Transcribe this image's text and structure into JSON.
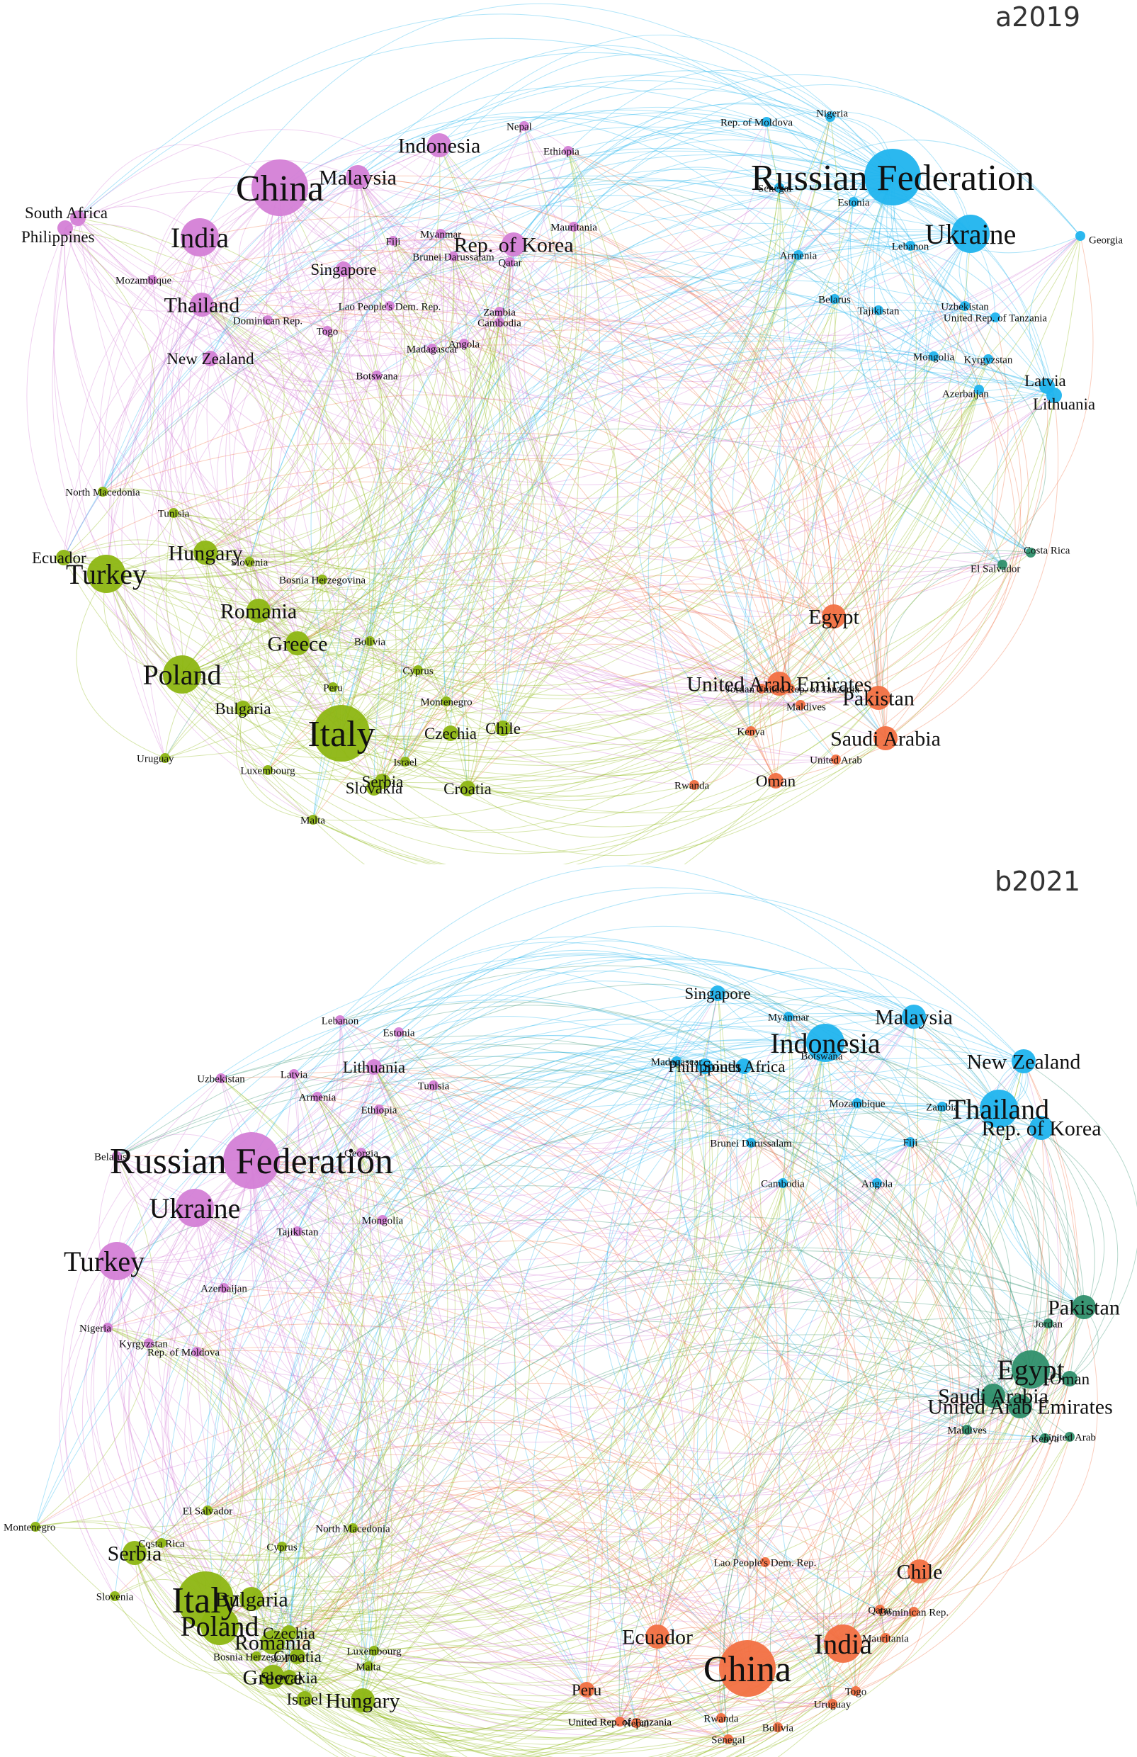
{
  "colors": {
    "purple": "#d47fd6",
    "cyan": "#20b4ee",
    "olive": "#8db612",
    "orange": "#f27042",
    "teal": "#2f8f6c",
    "edge_alpha": 0.35
  },
  "panels": [
    {
      "id": "a",
      "label": "a2019",
      "edge_count": 640,
      "nodes": [
        {
          "name": "China",
          "group": "purple",
          "size": "xl"
        },
        {
          "name": "India",
          "group": "purple",
          "size": "l"
        },
        {
          "name": "Indonesia",
          "group": "purple",
          "size": "m"
        },
        {
          "name": "Malaysia",
          "group": "purple",
          "size": "m"
        },
        {
          "name": "Thailand",
          "group": "purple",
          "size": "m"
        },
        {
          "name": "Rep. of Korea",
          "group": "purple",
          "size": "m"
        },
        {
          "name": "New Zealand",
          "group": "purple",
          "size": "s"
        },
        {
          "name": "Singapore",
          "group": "purple",
          "size": "s"
        },
        {
          "name": "South Africa",
          "group": "purple",
          "size": "s"
        },
        {
          "name": "Philippines",
          "group": "purple",
          "size": "s"
        },
        {
          "name": "Nepal",
          "group": "purple",
          "size": "xs"
        },
        {
          "name": "Ethiopia",
          "group": "purple",
          "size": "xs"
        },
        {
          "name": "Mauritania",
          "group": "purple",
          "size": "xs"
        },
        {
          "name": "Myanmar",
          "group": "purple",
          "size": "xs"
        },
        {
          "name": "Fiji",
          "group": "purple",
          "size": "xs"
        },
        {
          "name": "Brunei Darussalam",
          "group": "purple",
          "size": "xs"
        },
        {
          "name": "Qatar",
          "group": "purple",
          "size": "xs"
        },
        {
          "name": "Mozambique",
          "group": "purple",
          "size": "xs"
        },
        {
          "name": "Lao People's Dem. Rep.",
          "group": "purple",
          "size": "xs"
        },
        {
          "name": "Zambia",
          "group": "purple",
          "size": "xs"
        },
        {
          "name": "Cambodia",
          "group": "purple",
          "size": "xs"
        },
        {
          "name": "Dominican Rep.",
          "group": "purple",
          "size": "xs"
        },
        {
          "name": "Togo",
          "group": "purple",
          "size": "xs"
        },
        {
          "name": "Angola",
          "group": "purple",
          "size": "xs"
        },
        {
          "name": "Madagascar",
          "group": "purple",
          "size": "xs"
        },
        {
          "name": "Botswana",
          "group": "purple",
          "size": "xs"
        },
        {
          "name": "Russian Federation",
          "group": "cyan",
          "size": "xl"
        },
        {
          "name": "Ukraine",
          "group": "cyan",
          "size": "l"
        },
        {
          "name": "Rep. of Moldova",
          "group": "cyan",
          "size": "xs"
        },
        {
          "name": "Nigeria",
          "group": "cyan",
          "size": "xs"
        },
        {
          "name": "Senegal",
          "group": "cyan",
          "size": "xs"
        },
        {
          "name": "Estonia",
          "group": "cyan",
          "size": "xs"
        },
        {
          "name": "Georgia",
          "group": "cyan",
          "size": "xs"
        },
        {
          "name": "Armenia",
          "group": "cyan",
          "size": "xs"
        },
        {
          "name": "Lebanon",
          "group": "cyan",
          "size": "xs"
        },
        {
          "name": "Belarus",
          "group": "cyan",
          "size": "xs"
        },
        {
          "name": "Tajikistan",
          "group": "cyan",
          "size": "xs"
        },
        {
          "name": "Uzbekistan",
          "group": "cyan",
          "size": "xs"
        },
        {
          "name": "United Rep. of Tanzania",
          "group": "cyan",
          "size": "xs"
        },
        {
          "name": "Mongolia",
          "group": "cyan",
          "size": "xs"
        },
        {
          "name": "Kyrgyzstan",
          "group": "cyan",
          "size": "xs"
        },
        {
          "name": "Azerbaijan",
          "group": "cyan",
          "size": "xs"
        },
        {
          "name": "Latvia",
          "group": "cyan",
          "size": "s"
        },
        {
          "name": "Lithuania",
          "group": "cyan",
          "size": "s"
        },
        {
          "name": "Italy",
          "group": "olive",
          "size": "xl"
        },
        {
          "name": "Turkey",
          "group": "olive",
          "size": "l"
        },
        {
          "name": "Poland",
          "group": "olive",
          "size": "l"
        },
        {
          "name": "Romania",
          "group": "olive",
          "size": "m"
        },
        {
          "name": "Hungary",
          "group": "olive",
          "size": "m"
        },
        {
          "name": "Greece",
          "group": "olive",
          "size": "m"
        },
        {
          "name": "Bulgaria",
          "group": "olive",
          "size": "s"
        },
        {
          "name": "Serbia",
          "group": "olive",
          "size": "s"
        },
        {
          "name": "Slovakia",
          "group": "olive",
          "size": "s"
        },
        {
          "name": "Croatia",
          "group": "olive",
          "size": "s"
        },
        {
          "name": "Czechia",
          "group": "olive",
          "size": "s"
        },
        {
          "name": "Chile",
          "group": "olive",
          "size": "s"
        },
        {
          "name": "Ecuador",
          "group": "olive",
          "size": "s"
        },
        {
          "name": "Slovenia",
          "group": "olive",
          "size": "xs"
        },
        {
          "name": "North Macedonia",
          "group": "olive",
          "size": "xs"
        },
        {
          "name": "Tunisia",
          "group": "olive",
          "size": "xs"
        },
        {
          "name": "Bosnia Herzegovina",
          "group": "olive",
          "size": "xs"
        },
        {
          "name": "Bolivia",
          "group": "olive",
          "size": "xs"
        },
        {
          "name": "Peru",
          "group": "olive",
          "size": "xs"
        },
        {
          "name": "Cyprus",
          "group": "olive",
          "size": "xs"
        },
        {
          "name": "Montenegro",
          "group": "olive",
          "size": "xs"
        },
        {
          "name": "Israel",
          "group": "olive",
          "size": "xs"
        },
        {
          "name": "Uruguay",
          "group": "olive",
          "size": "xs"
        },
        {
          "name": "Luxembourg",
          "group": "olive",
          "size": "xs"
        },
        {
          "name": "Malta",
          "group": "olive",
          "size": "xs"
        },
        {
          "name": "Egypt",
          "group": "orange",
          "size": "m"
        },
        {
          "name": "United Arab Emirates",
          "group": "orange",
          "size": "m"
        },
        {
          "name": "Pakistan",
          "group": "orange",
          "size": "m"
        },
        {
          "name": "Saudi Arabia",
          "group": "orange",
          "size": "m"
        },
        {
          "name": "Jordan",
          "group": "orange",
          "size": "xs"
        },
        {
          "name": "United Rep. of Tanzania",
          "group": "orange",
          "size": "xs"
        },
        {
          "name": "Maldives",
          "group": "orange",
          "size": "xs"
        },
        {
          "name": "Kenya",
          "group": "orange",
          "size": "xs"
        },
        {
          "name": "United Arab",
          "group": "orange",
          "size": "xs"
        },
        {
          "name": "Oman",
          "group": "orange",
          "size": "s"
        },
        {
          "name": "Rwanda",
          "group": "orange",
          "size": "xs"
        },
        {
          "name": "Costa Rica",
          "group": "teal",
          "size": "xs"
        },
        {
          "name": "El Salvador",
          "group": "teal",
          "size": "xs"
        }
      ]
    },
    {
      "id": "b",
      "label": "b2021",
      "edge_count": 680,
      "nodes": [
        {
          "name": "Russian Federation",
          "group": "purple",
          "size": "xl"
        },
        {
          "name": "Ukraine",
          "group": "purple",
          "size": "l"
        },
        {
          "name": "Turkey",
          "group": "purple",
          "size": "l"
        },
        {
          "name": "Lebanon",
          "group": "purple",
          "size": "xs"
        },
        {
          "name": "Estonia",
          "group": "purple",
          "size": "xs"
        },
        {
          "name": "Latvia",
          "group": "purple",
          "size": "xs"
        },
        {
          "name": "Lithuania",
          "group": "purple",
          "size": "s"
        },
        {
          "name": "Uzbekistan",
          "group": "purple",
          "size": "xs"
        },
        {
          "name": "Armenia",
          "group": "purple",
          "size": "xs"
        },
        {
          "name": "Tunisia",
          "group": "purple",
          "size": "xs"
        },
        {
          "name": "United Rep. of Tanzania",
          "group": "purple",
          "size": "xs"
        },
        {
          "name": "Ethiopia",
          "group": "purple",
          "size": "xs"
        },
        {
          "name": "Belarus",
          "group": "purple",
          "size": "xs"
        },
        {
          "name": "Georgia",
          "group": "purple",
          "size": "xs"
        },
        {
          "name": "Mongolia",
          "group": "purple",
          "size": "xs"
        },
        {
          "name": "Tajikistan",
          "group": "purple",
          "size": "xs"
        },
        {
          "name": "Azerbaijan",
          "group": "purple",
          "size": "xs"
        },
        {
          "name": "Nigeria",
          "group": "purple",
          "size": "xs"
        },
        {
          "name": "Kyrgyzstan",
          "group": "purple",
          "size": "xs"
        },
        {
          "name": "Rep. of Moldova",
          "group": "purple",
          "size": "xs"
        },
        {
          "name": "Singapore",
          "group": "cyan",
          "size": "s"
        },
        {
          "name": "Myanmar",
          "group": "cyan",
          "size": "xs"
        },
        {
          "name": "Malaysia",
          "group": "cyan",
          "size": "m"
        },
        {
          "name": "Indonesia",
          "group": "cyan",
          "size": "l"
        },
        {
          "name": "Madagascar",
          "group": "cyan",
          "size": "xs"
        },
        {
          "name": "Philippines",
          "group": "cyan",
          "size": "s"
        },
        {
          "name": "South Africa",
          "group": "cyan",
          "size": "s"
        },
        {
          "name": "Botswana",
          "group": "cyan",
          "size": "xs"
        },
        {
          "name": "New Zealand",
          "group": "cyan",
          "size": "m"
        },
        {
          "name": "Mozambique",
          "group": "cyan",
          "size": "xs"
        },
        {
          "name": "Zambia",
          "group": "cyan",
          "size": "xs"
        },
        {
          "name": "Thailand",
          "group": "cyan",
          "size": "l"
        },
        {
          "name": "Rep. of Korea",
          "group": "cyan",
          "size": "m"
        },
        {
          "name": "Brunei Darussalam",
          "group": "cyan",
          "size": "xs"
        },
        {
          "name": "Fiji",
          "group": "cyan",
          "size": "xs"
        },
        {
          "name": "Cambodia",
          "group": "cyan",
          "size": "xs"
        },
        {
          "name": "Angola",
          "group": "cyan",
          "size": "xs"
        },
        {
          "name": "Pakistan",
          "group": "teal",
          "size": "m"
        },
        {
          "name": "Jordan",
          "group": "teal",
          "size": "xs"
        },
        {
          "name": "Egypt",
          "group": "teal",
          "size": "l"
        },
        {
          "name": "Oman",
          "group": "teal",
          "size": "s"
        },
        {
          "name": "Saudi Arabia",
          "group": "teal",
          "size": "m"
        },
        {
          "name": "United Arab Emirates",
          "group": "teal",
          "size": "m"
        },
        {
          "name": "Maldives",
          "group": "teal",
          "size": "xs"
        },
        {
          "name": "Kenya",
          "group": "teal",
          "size": "xs"
        },
        {
          "name": "United Arab",
          "group": "teal",
          "size": "xs"
        },
        {
          "name": "Montenegro",
          "group": "olive",
          "size": "xs"
        },
        {
          "name": "El Salvador",
          "group": "olive",
          "size": "xs"
        },
        {
          "name": "Costa Rica",
          "group": "olive",
          "size": "xs"
        },
        {
          "name": "North Macedonia",
          "group": "olive",
          "size": "xs"
        },
        {
          "name": "Serbia",
          "group": "olive",
          "size": "m"
        },
        {
          "name": "Cyprus",
          "group": "olive",
          "size": "xs"
        },
        {
          "name": "Slovenia",
          "group": "olive",
          "size": "xs"
        },
        {
          "name": "Italy",
          "group": "olive",
          "size": "xl"
        },
        {
          "name": "Bulgaria",
          "group": "olive",
          "size": "m"
        },
        {
          "name": "Poland",
          "group": "olive",
          "size": "l"
        },
        {
          "name": "Czechia",
          "group": "olive",
          "size": "s"
        },
        {
          "name": "Romania",
          "group": "olive",
          "size": "m"
        },
        {
          "name": "Bosnia Herzegovina",
          "group": "olive",
          "size": "xs"
        },
        {
          "name": "Croatia",
          "group": "olive",
          "size": "s"
        },
        {
          "name": "Luxembourg",
          "group": "olive",
          "size": "xs"
        },
        {
          "name": "Malta",
          "group": "olive",
          "size": "xs"
        },
        {
          "name": "Greece",
          "group": "olive",
          "size": "m"
        },
        {
          "name": "Slovakia",
          "group": "olive",
          "size": "s"
        },
        {
          "name": "Israel",
          "group": "olive",
          "size": "s"
        },
        {
          "name": "Hungary",
          "group": "olive",
          "size": "m"
        },
        {
          "name": "China",
          "group": "orange",
          "size": "xl"
        },
        {
          "name": "India",
          "group": "orange",
          "size": "l"
        },
        {
          "name": "Chile",
          "group": "orange",
          "size": "m"
        },
        {
          "name": "Lao People's Dem. Rep.",
          "group": "orange",
          "size": "xs"
        },
        {
          "name": "Qatar",
          "group": "orange",
          "size": "xs"
        },
        {
          "name": "Dominican Rep.",
          "group": "orange",
          "size": "xs"
        },
        {
          "name": "Mauritania",
          "group": "orange",
          "size": "xs"
        },
        {
          "name": "Ecuador",
          "group": "orange",
          "size": "m"
        },
        {
          "name": "Peru",
          "group": "orange",
          "size": "s"
        },
        {
          "name": "Togo",
          "group": "orange",
          "size": "xs"
        },
        {
          "name": "Uruguay",
          "group": "orange",
          "size": "xs"
        },
        {
          "name": "United Rep. of Tanzania",
          "group": "orange",
          "size": "xs"
        },
        {
          "name": "Nepal",
          "group": "orange",
          "size": "xs"
        },
        {
          "name": "Rwanda",
          "group": "orange",
          "size": "xs"
        },
        {
          "name": "Bolivia",
          "group": "orange",
          "size": "xs"
        },
        {
          "name": "Senegal",
          "group": "orange",
          "size": "xs"
        }
      ]
    }
  ]
}
